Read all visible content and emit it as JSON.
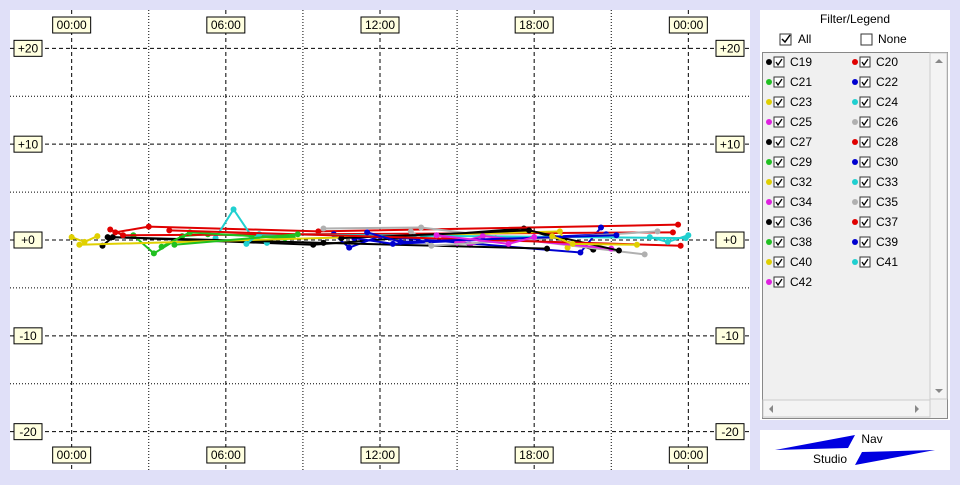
{
  "chart_data": {
    "type": "scatter",
    "xlim": [
      -2.4,
      26.4
    ],
    "ylim": [
      -24,
      24
    ],
    "xticks": [
      {
        "value": 0,
        "label": "00:00"
      },
      {
        "value": 6,
        "label": "06:00"
      },
      {
        "value": 12,
        "label": "12:00"
      },
      {
        "value": 18,
        "label": "18:00"
      },
      {
        "value": 24,
        "label": "00:00"
      }
    ],
    "yticks": [
      {
        "value": 20,
        "label": "+20"
      },
      {
        "value": 10,
        "label": "+10"
      },
      {
        "value": 0,
        "label": "+0"
      },
      {
        "value": -10,
        "label": "-10"
      },
      {
        "value": -20,
        "label": "-20"
      }
    ],
    "minor_xticks": [
      3,
      9,
      15,
      21
    ],
    "minor_yticks": [
      15,
      5,
      -5,
      -15
    ],
    "grid": true,
    "series": [
      {
        "name": "C19",
        "color": "#000000",
        "x": [
          1.2,
          1.6,
          9.4,
          17.6,
          20.3
        ],
        "values": [
          -0.6,
          0.3,
          -0.5,
          1.2,
          -1.0
        ]
      },
      {
        "name": "C20",
        "color": "#e00000",
        "x": [
          1.7,
          3.0,
          9.6,
          23.6
        ],
        "values": [
          0.8,
          1.4,
          0.9,
          1.6
        ]
      },
      {
        "name": "C21",
        "color": "#20c020",
        "x": [
          2.4,
          3.2,
          4.3,
          5.3,
          8.6
        ],
        "values": [
          0.5,
          -1.4,
          0.4,
          0.6,
          0.3
        ]
      },
      {
        "name": "C22",
        "color": "#0000d0",
        "x": [
          10.2,
          10.8,
          12.0,
          19.8,
          20.6
        ],
        "values": [
          0.6,
          -0.8,
          0.4,
          -1.3,
          1.3
        ]
      },
      {
        "name": "C23",
        "color": "#e0d000",
        "x": [
          0,
          0.5,
          1.0
        ],
        "values": [
          0.3,
          -0.2,
          0.4
        ]
      },
      {
        "name": "C24",
        "color": "#20d0d0",
        "x": [
          5.6,
          6.3,
          7.0,
          7.6
        ],
        "values": [
          0.2,
          3.2,
          0.4,
          -0.3
        ]
      },
      {
        "name": "C25",
        "color": "#e020e0",
        "x": [
          14.5,
          15.5,
          16.5
        ],
        "values": [
          0.3,
          -0.5,
          0.2
        ]
      },
      {
        "name": "C26",
        "color": "#b0b0b0",
        "x": [
          9.8,
          13.6,
          22.3
        ],
        "values": [
          1.2,
          1.3,
          -1.5
        ]
      },
      {
        "name": "C27",
        "color": "#000000",
        "x": [
          1.4,
          9.8,
          18.5
        ],
        "values": [
          0.3,
          -0.3,
          -0.9
        ]
      },
      {
        "name": "C28",
        "color": "#e00000",
        "x": [
          1.5,
          2.0,
          23.4
        ],
        "values": [
          1.1,
          0.5,
          0.8
        ]
      },
      {
        "name": "C29",
        "color": "#20c020",
        "x": [
          3.5,
          4.6,
          8.3
        ],
        "values": [
          -0.7,
          0.8,
          0.2
        ]
      },
      {
        "name": "C30",
        "color": "#0000d0",
        "x": [
          11.0,
          12.5,
          20.8
        ],
        "values": [
          0.2,
          -0.4,
          0.6
        ]
      },
      {
        "name": "C32",
        "color": "#e0d000",
        "x": [
          0.3,
          19.0,
          19.3
        ],
        "values": [
          -0.5,
          0.9,
          -0.8
        ]
      },
      {
        "name": "C33",
        "color": "#20d0d0",
        "x": [
          6.8,
          7.3,
          23.9
        ],
        "values": [
          -0.4,
          0.6,
          0.2
        ]
      },
      {
        "name": "C34",
        "color": "#e020e0",
        "x": [
          15.0,
          16.0,
          21.0
        ],
        "values": [
          -0.3,
          0.4,
          -0.9
        ]
      },
      {
        "name": "C35",
        "color": "#b0b0b0",
        "x": [
          13.2,
          14.0,
          22.8
        ],
        "values": [
          0.9,
          -0.6,
          0.9
        ]
      },
      {
        "name": "C36",
        "color": "#000000",
        "x": [
          10.5,
          17.8,
          21.3
        ],
        "values": [
          0.2,
          1.0,
          -1.1
        ]
      },
      {
        "name": "C37",
        "color": "#e00000",
        "x": [
          3.8,
          23.7
        ],
        "values": [
          1.0,
          -0.6
        ]
      },
      {
        "name": "C38",
        "color": "#20c020",
        "x": [
          4.0,
          8.8
        ],
        "values": [
          -0.5,
          0.6
        ]
      },
      {
        "name": "C39",
        "color": "#0000d0",
        "x": [
          11.5,
          12.8,
          21.2
        ],
        "values": [
          0.8,
          -0.2,
          0.5
        ]
      },
      {
        "name": "C40",
        "color": "#e0d000",
        "x": [
          18.7,
          19.5,
          22.0
        ],
        "values": [
          0.4,
          -0.4,
          -0.5
        ]
      },
      {
        "name": "C41",
        "color": "#20d0d0",
        "x": [
          22.5,
          23.2,
          24.0
        ],
        "values": [
          0.3,
          -0.2,
          0.5
        ]
      },
      {
        "name": "C42",
        "color": "#e020e0",
        "x": [
          14.2,
          17.0,
          18.0
        ],
        "values": [
          0.5,
          -0.4,
          0.3
        ]
      }
    ]
  },
  "legend_panel": {
    "title": "Filter/Legend",
    "all": "All",
    "none": "None"
  },
  "logo": {
    "top": "Nav",
    "bottom": "Studio"
  }
}
